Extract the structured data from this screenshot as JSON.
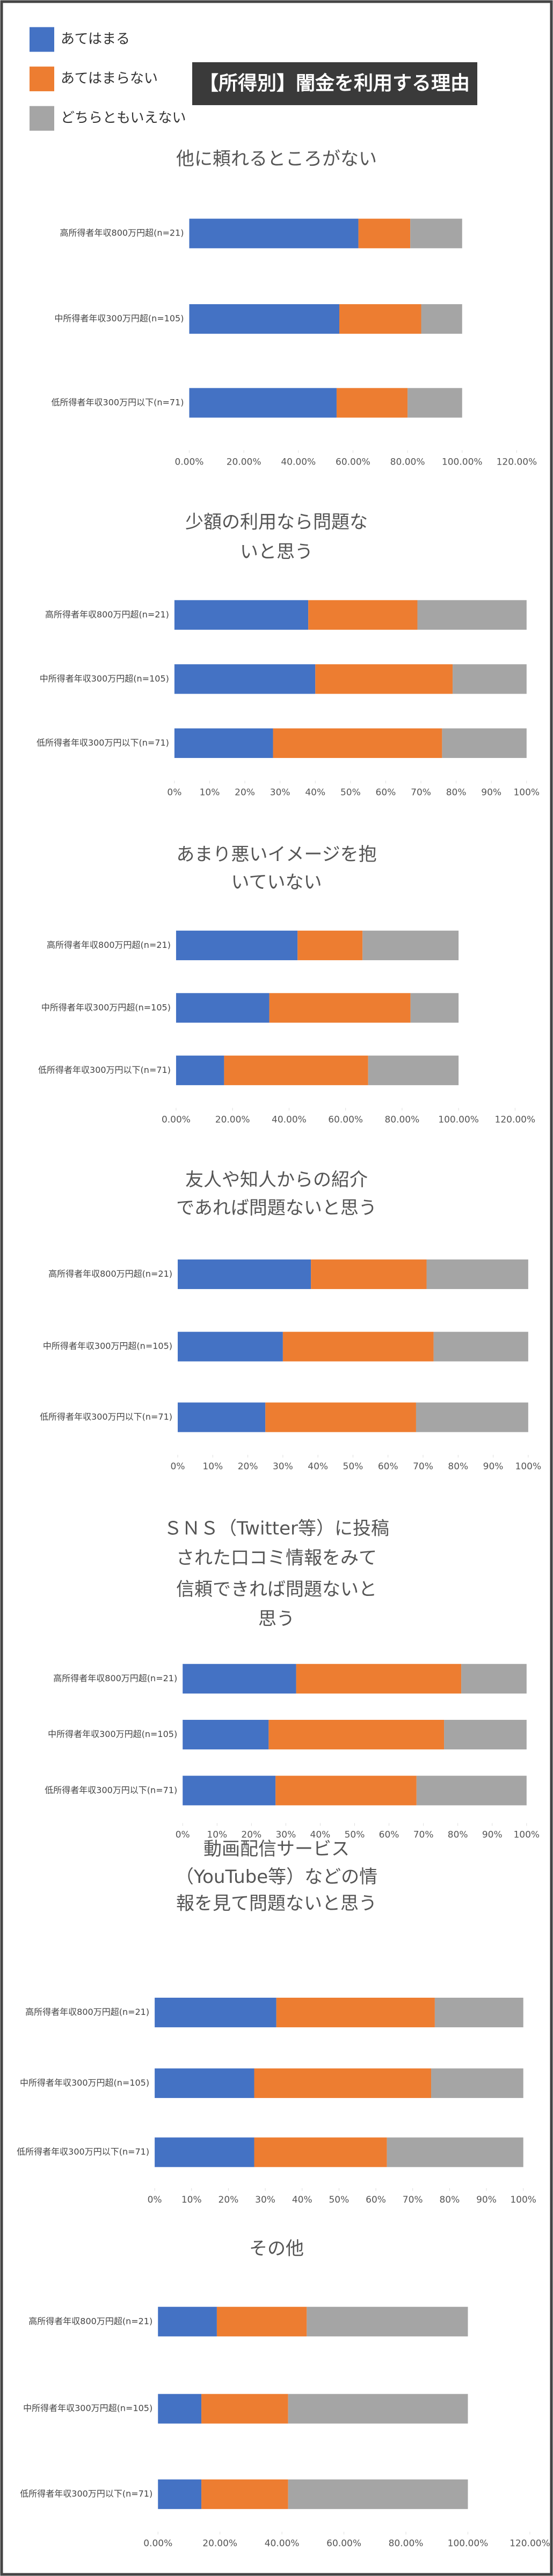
{
  "title": "【所得別】闇金を利用する理由",
  "chart_data": [
    {
      "type": "bar",
      "orientation": "horizontal",
      "stacked": true,
      "title": "他に頼れるところがない",
      "categories": [
        "高所得者年収800万円超(n=21)",
        "中所得者年収300万円超(n=105)",
        "低所得者年収300万円以下(n=71)"
      ],
      "series": [
        {
          "name": "あてはまる",
          "color": "#4472c4",
          "values": [
            62,
            55,
            54
          ]
        },
        {
          "name": "あてはまらない",
          "color": "#ed7d31",
          "values": [
            19,
            30,
            26
          ]
        },
        {
          "name": "どちらともいえない",
          "color": "#a5a5a5",
          "values": [
            19,
            15,
            20
          ]
        }
      ],
      "xlim": [
        0,
        120
      ],
      "xticks": [
        {
          "value": 0,
          "label": "0.00%"
        },
        {
          "value": 20,
          "label": "20.00%"
        },
        {
          "value": 40,
          "label": "40.00%"
        },
        {
          "value": 60,
          "label": "60.00%"
        },
        {
          "value": 80,
          "label": "80.00%"
        },
        {
          "value": 100,
          "label": "100.00%"
        },
        {
          "value": 120,
          "label": "120.00%"
        }
      ]
    },
    {
      "type": "bar",
      "orientation": "horizontal",
      "stacked": true,
      "title": "少額の利用なら問題な\nいと思う",
      "categories": [
        "高所得者年収800万円超(n=21)",
        "中所得者年収300万円超(n=105)",
        "低所得者年収300万円以下(n=71)"
      ],
      "series": [
        {
          "name": "あてはまる",
          "color": "#4472c4",
          "values": [
            38,
            40,
            28
          ]
        },
        {
          "name": "あてはまらない",
          "color": "#ed7d31",
          "values": [
            31,
            39,
            48
          ]
        },
        {
          "name": "どちらともいえない",
          "color": "#a5a5a5",
          "values": [
            31,
            21,
            24
          ]
        }
      ],
      "xlim": [
        0,
        100
      ],
      "xticks": [
        {
          "value": 0,
          "label": "0%"
        },
        {
          "value": 10,
          "label": "10%"
        },
        {
          "value": 20,
          "label": "20%"
        },
        {
          "value": 30,
          "label": "30%"
        },
        {
          "value": 40,
          "label": "40%"
        },
        {
          "value": 50,
          "label": "50%"
        },
        {
          "value": 60,
          "label": "60%"
        },
        {
          "value": 70,
          "label": "70%"
        },
        {
          "value": 80,
          "label": "80%"
        },
        {
          "value": 90,
          "label": "90%"
        },
        {
          "value": 100,
          "label": "100%"
        }
      ]
    },
    {
      "type": "bar",
      "orientation": "horizontal",
      "stacked": true,
      "title": "あまり悪いイメージを抱\nいていない",
      "categories": [
        "高所得者年収800万円超(n=21)",
        "中所得者年収300万円超(n=105)",
        "低所得者年収300万円以下(n=71)"
      ],
      "series": [
        {
          "name": "あてはまる",
          "color": "#4472c4",
          "values": [
            43,
            33,
            17
          ]
        },
        {
          "name": "あてはまらない",
          "color": "#ed7d31",
          "values": [
            23,
            50,
            51
          ]
        },
        {
          "name": "どちらともいえない",
          "color": "#a5a5a5",
          "values": [
            34,
            17,
            32
          ]
        }
      ],
      "xlim": [
        0,
        120
      ],
      "xticks": [
        {
          "value": 0,
          "label": "0.00%"
        },
        {
          "value": 20,
          "label": "20.00%"
        },
        {
          "value": 40,
          "label": "40.00%"
        },
        {
          "value": 60,
          "label": "60.00%"
        },
        {
          "value": 80,
          "label": "80.00%"
        },
        {
          "value": 100,
          "label": "100.00%"
        },
        {
          "value": 120,
          "label": "120.00%"
        }
      ]
    },
    {
      "type": "bar",
      "orientation": "horizontal",
      "stacked": true,
      "title": "友人や知人からの紹介\nであれば問題ないと思う",
      "categories": [
        "高所得者年収800万円超(n=21)",
        "中所得者年収300万円超(n=105)",
        "低所得者年収300万円以下(n=71)"
      ],
      "series": [
        {
          "name": "あてはまる",
          "color": "#4472c4",
          "values": [
            38,
            30,
            25
          ]
        },
        {
          "name": "あてはまらない",
          "color": "#ed7d31",
          "values": [
            33,
            43,
            43
          ]
        },
        {
          "name": "どちらともいえない",
          "color": "#a5a5a5",
          "values": [
            29,
            27,
            32
          ]
        }
      ],
      "xlim": [
        0,
        100
      ],
      "xticks": [
        {
          "value": 0,
          "label": "0%"
        },
        {
          "value": 10,
          "label": "10%"
        },
        {
          "value": 20,
          "label": "20%"
        },
        {
          "value": 30,
          "label": "30%"
        },
        {
          "value": 40,
          "label": "40%"
        },
        {
          "value": 50,
          "label": "50%"
        },
        {
          "value": 60,
          "label": "60%"
        },
        {
          "value": 70,
          "label": "70%"
        },
        {
          "value": 80,
          "label": "80%"
        },
        {
          "value": 90,
          "label": "90%"
        },
        {
          "value": 100,
          "label": "100%"
        }
      ]
    },
    {
      "type": "bar",
      "orientation": "horizontal",
      "stacked": true,
      "title": "ＳＮＳ（Twitter等）に投稿\nされた口コミ情報をみて\n信頼できれば問題ないと\n思う",
      "categories": [
        "高所得者年収800万円超(n=21)",
        "中所得者年収300万円超(n=105)",
        "低所得者年収300万円以下(n=71)"
      ],
      "series": [
        {
          "name": "あてはまる",
          "color": "#4472c4",
          "values": [
            33,
            25,
            27
          ]
        },
        {
          "name": "あてはまらない",
          "color": "#ed7d31",
          "values": [
            48,
            51,
            41
          ]
        },
        {
          "name": "どちらともいえない",
          "color": "#a5a5a5",
          "values": [
            19,
            24,
            32
          ]
        }
      ],
      "xlim": [
        0,
        100
      ],
      "xticks": [
        {
          "value": 0,
          "label": "0%"
        },
        {
          "value": 10,
          "label": "10%"
        },
        {
          "value": 20,
          "label": "20%"
        },
        {
          "value": 30,
          "label": "30%"
        },
        {
          "value": 40,
          "label": "40%"
        },
        {
          "value": 50,
          "label": "50%"
        },
        {
          "value": 60,
          "label": "60%"
        },
        {
          "value": 70,
          "label": "70%"
        },
        {
          "value": 80,
          "label": "80%"
        },
        {
          "value": 90,
          "label": "90%"
        },
        {
          "value": 100,
          "label": "100%"
        }
      ]
    },
    {
      "type": "bar",
      "orientation": "horizontal",
      "stacked": true,
      "title": "動画配信サービス\n（YouTube等）などの情\n報を見て問題ないと思う",
      "categories": [
        "高所得者年収800万円超(n=21)",
        "中所得者年収300万円超(n=105)",
        "低所得者年収300万円以下(n=71)"
      ],
      "series": [
        {
          "name": "あてはまる",
          "color": "#4472c4",
          "values": [
            33,
            27,
            27
          ]
        },
        {
          "name": "あてはまらない",
          "color": "#ed7d31",
          "values": [
            43,
            48,
            36
          ]
        },
        {
          "name": "どちらともいえない",
          "color": "#a5a5a5",
          "values": [
            24,
            25,
            37
          ]
        }
      ],
      "xlim": [
        0,
        100
      ],
      "xticks": [
        {
          "value": 0,
          "label": "0%"
        },
        {
          "value": 10,
          "label": "10%"
        },
        {
          "value": 20,
          "label": "20%"
        },
        {
          "value": 30,
          "label": "30%"
        },
        {
          "value": 40,
          "label": "40%"
        },
        {
          "value": 50,
          "label": "50%"
        },
        {
          "value": 60,
          "label": "60%"
        },
        {
          "value": 70,
          "label": "70%"
        },
        {
          "value": 80,
          "label": "80%"
        },
        {
          "value": 90,
          "label": "90%"
        },
        {
          "value": 100,
          "label": "100%"
        }
      ]
    },
    {
      "type": "bar",
      "orientation": "horizontal",
      "stacked": true,
      "title": "その他",
      "categories": [
        "高所得者年収800万円超(n=21)",
        "中所得者年収300万円超(n=105)",
        "低所得者年収300万円以下(n=71)"
      ],
      "series": [
        {
          "name": "あてはまる",
          "color": "#4472c4",
          "values": [
            19,
            14,
            14
          ]
        },
        {
          "name": "あてはまらない",
          "color": "#ed7d31",
          "values": [
            29,
            28,
            28
          ]
        },
        {
          "name": "どちらともいえない",
          "color": "#a5a5a5",
          "values": [
            52,
            58,
            58
          ]
        }
      ],
      "xlim": [
        0,
        120
      ],
      "xticks": [
        {
          "value": 0,
          "label": "0.00%"
        },
        {
          "value": 20,
          "label": "20.00%"
        },
        {
          "value": 40,
          "label": "40.00%"
        },
        {
          "value": 60,
          "label": "60.00%"
        },
        {
          "value": 80,
          "label": "80.00%"
        },
        {
          "value": 100,
          "label": "100.00%"
        },
        {
          "value": 120,
          "label": "120.00%"
        }
      ]
    }
  ]
}
